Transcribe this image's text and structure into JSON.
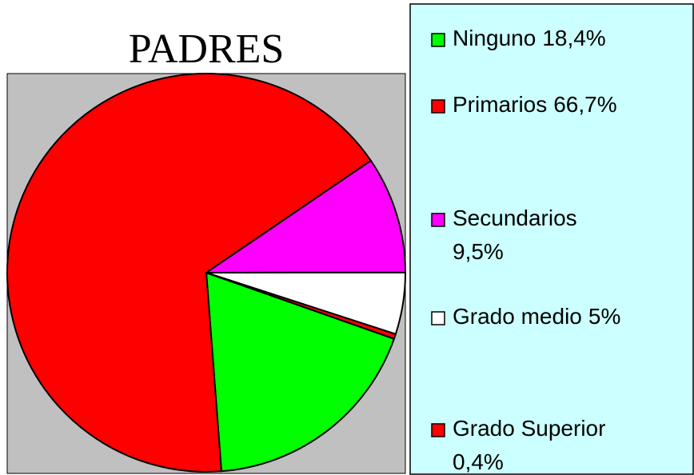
{
  "chart_data": {
    "type": "pie",
    "title": "PADRES",
    "categories": [
      "Ninguno",
      "Primarios",
      "Secundarios",
      "Grado medio",
      "Grado Superior"
    ],
    "values": [
      18.4,
      66.7,
      9.5,
      5,
      0.4
    ],
    "value_labels": [
      "18,4%",
      "66,7%",
      "9,5%",
      "5%",
      "0,4%"
    ],
    "colors": [
      "#00ff00",
      "#ff0000",
      "#ff00ff",
      "#ffffff",
      "#ff0000"
    ],
    "legend": "right"
  }
}
